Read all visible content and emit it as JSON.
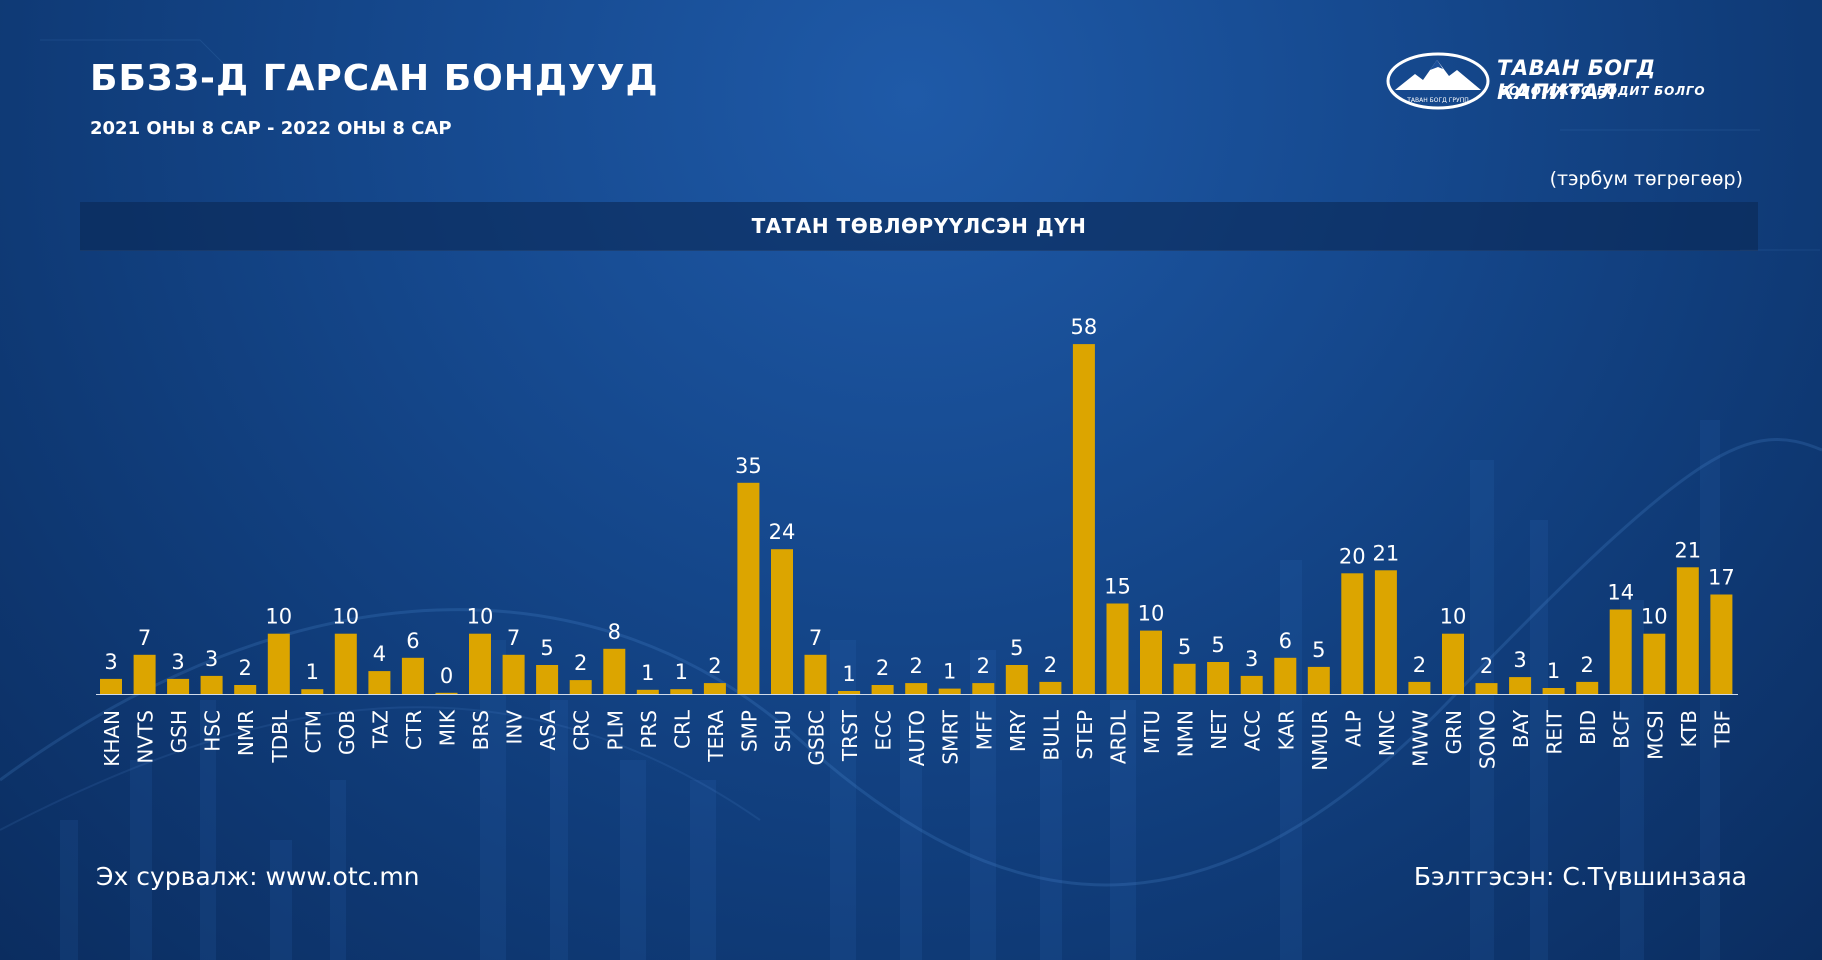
{
  "header": {
    "title": "ББЗЗ-Д ГАРСАН БОНДУУД",
    "subtitle": "2021 ОНЫ 8 САР - 2022 ОНЫ 8 САР",
    "unit": "(тэрбум төгрөгөөр)",
    "banner": "ТАТАН ТӨВЛӨРҮҮЛСЭН ДҮН"
  },
  "logo": {
    "name": "ТАВАН БОГД КАПИТАЛ",
    "slogan": "БОЛОМЖОО БОДИТ БОЛГО",
    "badge_text": "ТАВАН БОГД ГРУПП"
  },
  "footer": {
    "source": "Эх сурвалж: www.otc.mn",
    "author": "Бэлтгэсэн: С.Түвшинзаяа"
  },
  "colors": {
    "bar": "#dca500",
    "background": "#164a90",
    "banner": "#0e2f62",
    "text": "#ffffff"
  },
  "chart_data": {
    "type": "bar",
    "title": "ТАТАН ТӨВЛӨРҮҮЛСЭН ДҮН",
    "ylabel": "",
    "xlabel": "",
    "grid": false,
    "categories": [
      "KHAN",
      "NVTS",
      "GSH",
      "HSC",
      "NMR",
      "TDBL",
      "CTM",
      "GOB",
      "TAZ",
      "CTR",
      "MIK",
      "BRS",
      "INV",
      "ASA",
      "CRC",
      "PLM",
      "PRS",
      "CRL",
      "TERA",
      "SMP",
      "SHU",
      "GSBC",
      "TRST",
      "ECC",
      "AUTO",
      "SMRT",
      "MFF",
      "MRY",
      "BULL",
      "STEP",
      "ARDL",
      "MTU",
      "NMN",
      "NET",
      "ACC",
      "KAR",
      "NMUR",
      "ALP",
      "MNC",
      "MWW",
      "GRN",
      "SONO",
      "BAY",
      "REIT",
      "BID",
      "BCF",
      "MCSI",
      "KTB",
      "TBF"
    ],
    "values": [
      2.5,
      6.5,
      2.5,
      3,
      1.5,
      10,
      0.8,
      10,
      3.8,
      6,
      0.2,
      10,
      6.5,
      4.8,
      2.3,
      7.5,
      0.7,
      0.8,
      1.8,
      35,
      24,
      6.5,
      0.5,
      1.5,
      1.8,
      0.9,
      1.8,
      4.8,
      2,
      58,
      15,
      10.5,
      5,
      5.3,
      3,
      6,
      4.5,
      20,
      20.5,
      2,
      10,
      1.8,
      2.8,
      1,
      2,
      14,
      10,
      21,
      16.5
    ],
    "labels": [
      "3",
      "7",
      "3",
      "3",
      "2",
      "10",
      "1",
      "10",
      "4",
      "6",
      "0",
      "10",
      "7",
      "5",
      "2",
      "8",
      "1",
      "1",
      "2",
      "35",
      "24",
      "7",
      "1",
      "2",
      "2",
      "1",
      "2",
      "5",
      "2",
      "58",
      "15",
      "10",
      "5",
      "5",
      "3",
      "6",
      "5",
      "20",
      "21",
      "2",
      "10",
      "2",
      "3",
      "1",
      "2",
      "14",
      "10",
      "21",
      "17"
    ],
    "ylim": [
      0,
      60
    ]
  }
}
